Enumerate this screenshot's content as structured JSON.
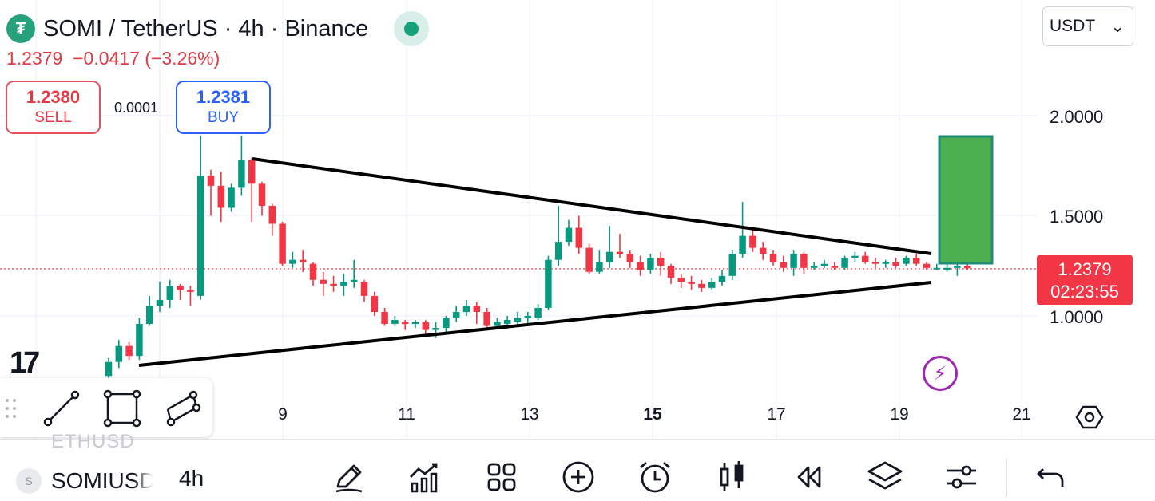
{
  "header": {
    "logo_glyph": "₮",
    "title": "SOMI / TetherUS · 4h · Binance",
    "price_change": "1.2379  −0.0417 (−3.26%)",
    "live_color": "#16a07a"
  },
  "trade": {
    "sell_price": "1.2380",
    "sell_label": "SELL",
    "spread": "0.0001",
    "buy_price": "1.2381",
    "buy_label": "BUY"
  },
  "currency": {
    "selected": "USDT",
    "chevron": "⌄"
  },
  "price_axis": {
    "labels": [
      "2.0000",
      "1.5000",
      "1.0000"
    ]
  },
  "time_axis": {
    "labels": [
      "9",
      "11",
      "13",
      "15",
      "17",
      "19",
      "21"
    ],
    "bold_label": "15"
  },
  "last_price": {
    "price": "1.2379",
    "countdown": "02:23:55",
    "color": "#f23645"
  },
  "watermark": "17",
  "colors": {
    "up": "#089981",
    "down": "#f23645",
    "trendline": "#000000",
    "target_box": "#4caf50",
    "target_border": "#1e8a7a"
  },
  "drawing_tools": [
    "trendline-icon",
    "rectangle-icon",
    "parallel-channel-icon"
  ],
  "bolt_glyph": "⚡",
  "bottom": {
    "ghost_symbol": "ETHUSD",
    "avatar_letter": "S",
    "symbol": "SOMIUSDT",
    "interval": "4h",
    "tools": [
      "pencil-icon",
      "indicators-icon",
      "layout-grid-icon",
      "add-icon",
      "alert-clock-icon",
      "chart-type-icon",
      "replay-icon",
      "layers-icon",
      "settings-sliders-icon",
      "undo-icon"
    ]
  }
}
